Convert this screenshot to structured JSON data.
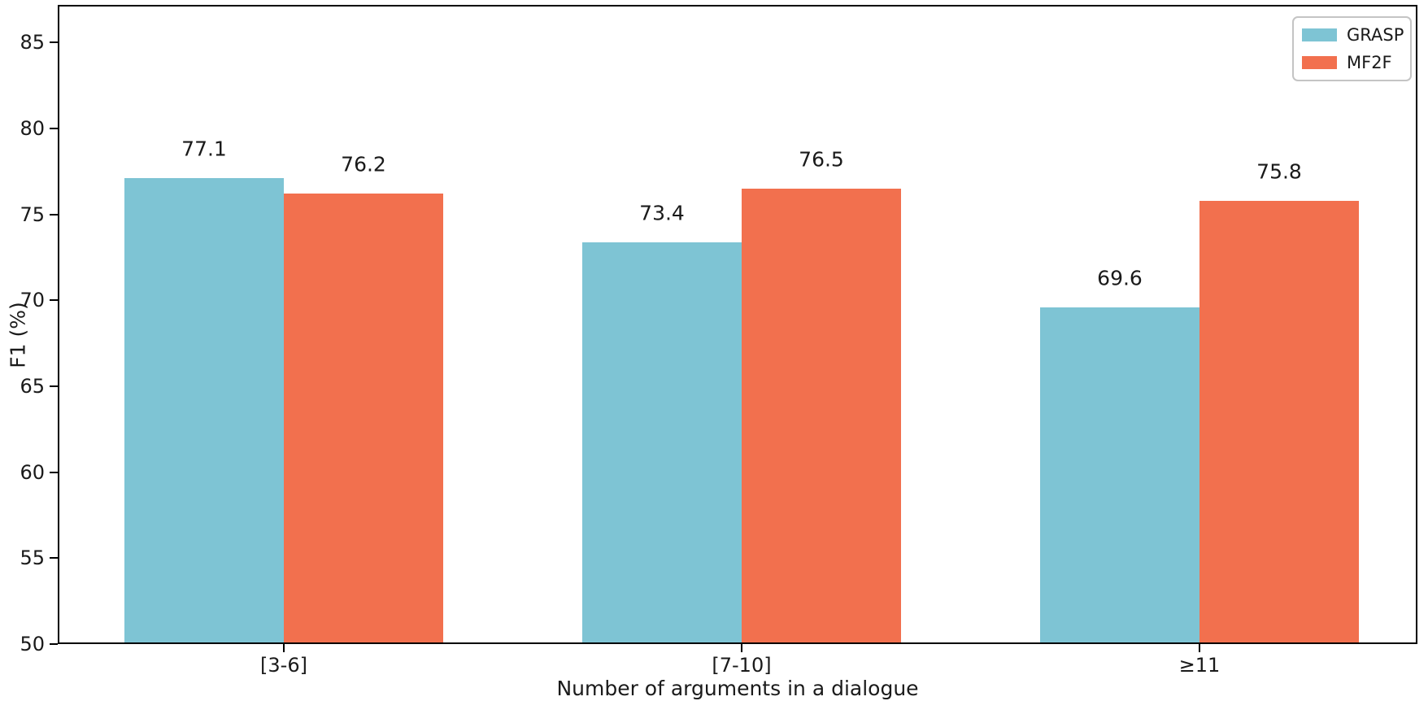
{
  "chart_data": {
    "type": "bar",
    "title": "",
    "xlabel": "Number of arguments in a dialogue",
    "ylabel": "F1 (%)",
    "categories": [
      "[3-6]",
      "[7-10]",
      "≥11"
    ],
    "series": [
      {
        "name": "GRASP",
        "color": "#7ec4d4",
        "values": [
          77.1,
          73.4,
          69.6
        ]
      },
      {
        "name": "MF2F",
        "color": "#f2704e",
        "values": [
          76.2,
          76.5,
          75.8
        ]
      }
    ],
    "yticks": [
      50,
      55,
      60,
      65,
      70,
      75,
      80,
      85
    ],
    "ylim": [
      50,
      87.2
    ],
    "grid": false,
    "legend_position": "upper right",
    "bar_value_labels_decimals": 1,
    "colors": {
      "axis": "#000000",
      "text": "#1a1a1a",
      "legend_border": "#c4c4c4",
      "background": "#ffffff"
    }
  }
}
